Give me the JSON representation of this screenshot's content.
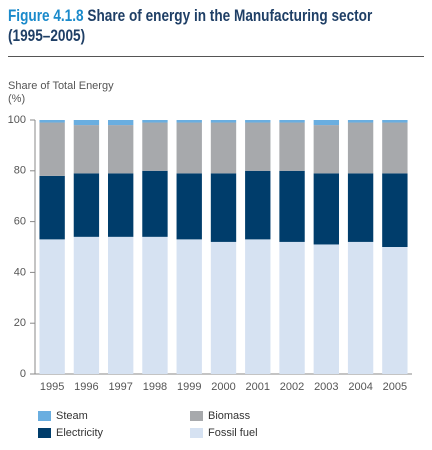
{
  "chart_data": {
    "type": "stacked_bar",
    "title_label": "Figure 4.1.8",
    "title": [
      "Share of energy in the Manufacturing sector",
      "(1995–2005)"
    ],
    "y_label": [
      "Share of Total Energy",
      "(%)"
    ],
    "categories": [
      "1995",
      "1996",
      "1997",
      "1998",
      "1999",
      "2000",
      "2001",
      "2002",
      "2003",
      "2004",
      "2005"
    ],
    "series": [
      {
        "name": "Fossil fuel",
        "color": "#d6e2f2",
        "values": [
          53,
          54,
          54,
          54,
          53,
          52,
          53,
          52,
          51,
          52,
          50
        ]
      },
      {
        "name": "Electricity",
        "color": "#003d6b",
        "values": [
          25,
          25,
          25,
          26,
          26,
          27,
          27,
          28,
          28,
          27,
          29
        ]
      },
      {
        "name": "Biomass",
        "color": "#a7a9ac",
        "values": [
          21,
          19,
          19,
          19,
          20,
          20,
          19,
          19,
          19,
          20,
          20
        ]
      },
      {
        "name": "Steam",
        "color": "#6aaee0",
        "values": [
          1,
          2,
          2,
          1,
          1,
          1,
          1,
          1,
          2,
          1,
          1
        ]
      }
    ],
    "ylim": [
      0,
      100
    ],
    "yticks": [
      0,
      20,
      40,
      60,
      80,
      100
    ]
  }
}
